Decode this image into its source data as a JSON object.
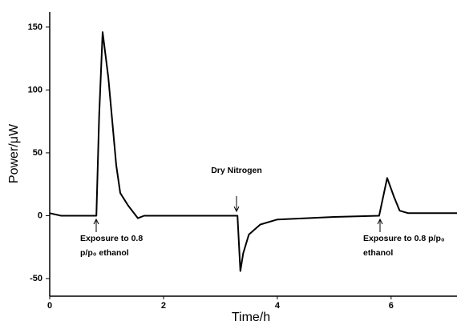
{
  "chart_data": {
    "type": "line",
    "xlabel": "Time/h",
    "ylabel": "Power/μW",
    "x": [
      0,
      0.2,
      0.82,
      0.87,
      0.93,
      1.03,
      1.17,
      1.24,
      1.38,
      1.55,
      1.66,
      3.3,
      3.35,
      3.4,
      3.5,
      3.7,
      4.0,
      4.5,
      5.0,
      5.79,
      5.93,
      6.05,
      6.15,
      6.3,
      7.2
    ],
    "series": [
      {
        "color": "#000000",
        "values": [
          2,
          0,
          0,
          80,
          146,
          110,
          40,
          18,
          8,
          -2,
          0,
          0,
          -44,
          -30,
          -15,
          -7,
          -3,
          -2,
          -1,
          0,
          30,
          15,
          4,
          2,
          2
        ]
      }
    ],
    "xlim": [
      0,
      7.2
    ],
    "xticks": [
      0,
      2,
      4,
      6
    ],
    "ylim": [
      -64,
      162
    ],
    "yticks": [
      -50,
      0,
      50,
      100,
      150
    ],
    "annotations": [
      [
        "Dry Nitrogen"
      ],
      [
        "Exposure to 0.8",
        "p/p₀ ethanol"
      ],
      [
        "Exposure to 0.8 p/p₀",
        "ethanol"
      ]
    ]
  }
}
